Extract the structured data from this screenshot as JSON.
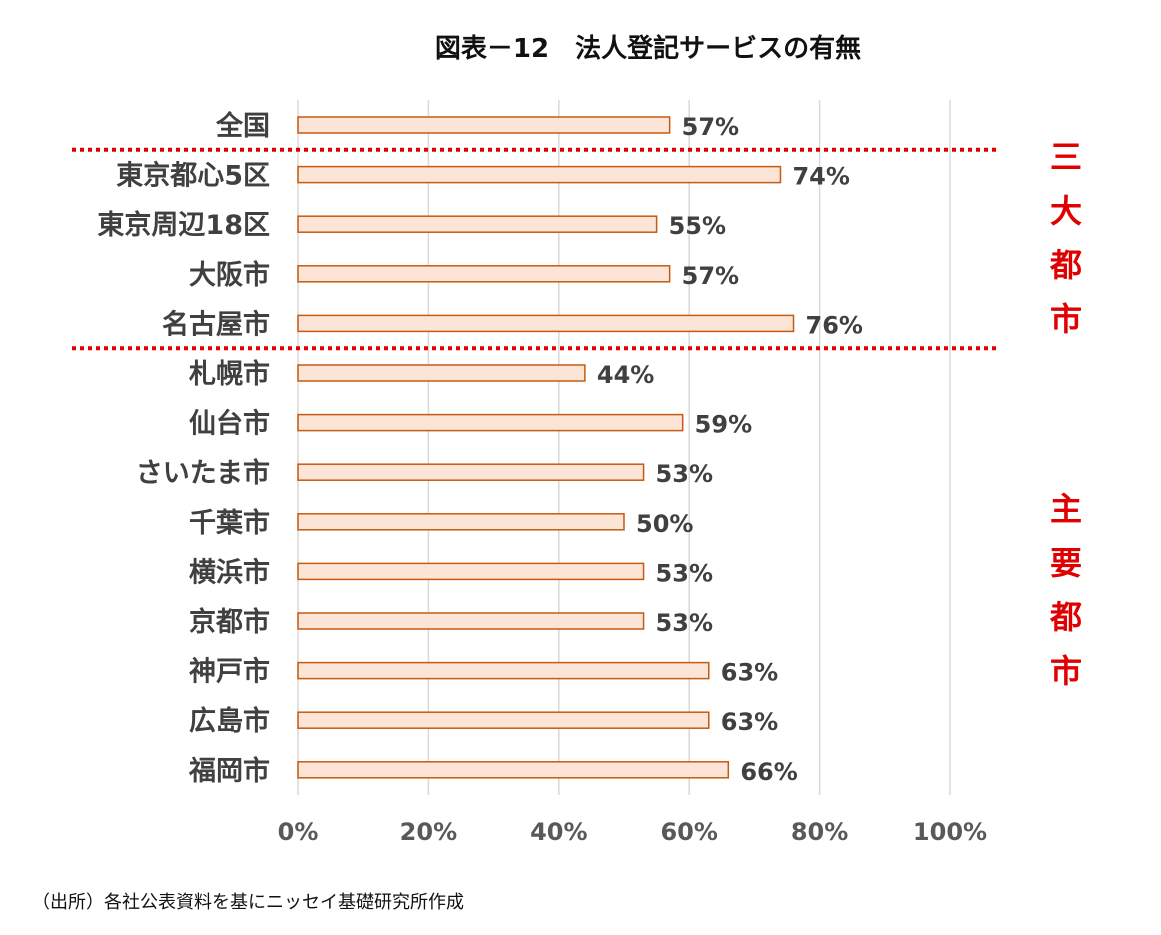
{
  "chart_data": {
    "type": "bar",
    "orientation": "horizontal",
    "title": "図表－12　法人登記サービスの有無",
    "categories": [
      "全国",
      "東京都心5区",
      "東京周辺18区",
      "大阪市",
      "名古屋市",
      "札幌市",
      "仙台市",
      "さいたま市",
      "千葉市",
      "横浜市",
      "京都市",
      "神戸市",
      "広島市",
      "福岡市"
    ],
    "values": [
      57,
      74,
      55,
      57,
      76,
      44,
      59,
      53,
      50,
      53,
      53,
      63,
      63,
      66
    ],
    "value_labels": [
      "57%",
      "74%",
      "55%",
      "57%",
      "76%",
      "44%",
      "59%",
      "53%",
      "50%",
      "53%",
      "53%",
      "63%",
      "63%",
      "66%"
    ],
    "x_ticks": [
      "0%",
      "20%",
      "40%",
      "60%",
      "80%",
      "100%"
    ],
    "xlim": [
      0,
      100
    ],
    "grid": "vertical",
    "legend": "none",
    "bar_fill": "#fce4d6",
    "bar_stroke": "#c55a11",
    "group_color": "#e00000",
    "groups": [
      {
        "label_chars": [
          "三",
          "大",
          "都",
          "市"
        ],
        "categories": [
          "東京都心5区",
          "東京周辺18区",
          "大阪市",
          "名古屋市"
        ]
      },
      {
        "label_chars": [
          "主",
          "要",
          "都",
          "市"
        ],
        "categories": [
          "札幌市",
          "仙台市",
          "さいたま市",
          "千葉市",
          "横浜市",
          "京都市",
          "神戸市",
          "広島市",
          "福岡市"
        ]
      }
    ],
    "source": "（出所）各社公表資料を基にニッセイ基礎研究所作成"
  }
}
